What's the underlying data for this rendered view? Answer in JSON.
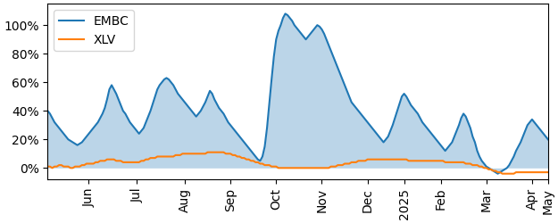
{
  "chart_data": {
    "type": "line",
    "categories": [
      null,
      null,
      null,
      null,
      null,
      null,
      null,
      null,
      null,
      null,
      null,
      null,
      null,
      null,
      null,
      null,
      null,
      null,
      "Jun",
      null,
      null,
      null,
      null,
      null,
      null,
      null,
      null,
      null,
      null,
      null,
      null,
      null,
      null,
      null,
      null,
      null,
      null,
      null,
      null,
      "Jul",
      null,
      null,
      null,
      null,
      null,
      null,
      null,
      null,
      null,
      null,
      null,
      null,
      null,
      null,
      null,
      null,
      null,
      null,
      null,
      null,
      "Aug",
      null,
      null,
      null,
      null,
      null,
      null,
      null,
      null,
      null,
      null,
      null,
      null,
      null,
      null,
      null,
      null,
      null,
      null,
      null,
      "Sep",
      null,
      null,
      null,
      null,
      null,
      null,
      null,
      null,
      null,
      null,
      null,
      null,
      null,
      null,
      null,
      null,
      null,
      null,
      null,
      "Oct",
      null,
      null,
      null,
      null,
      null,
      null,
      null,
      null,
      null,
      null,
      null,
      null,
      null,
      null,
      null,
      null,
      null,
      null,
      null,
      "Nov",
      null,
      null,
      null,
      null,
      null,
      null,
      null,
      null,
      null,
      null,
      null,
      null,
      null,
      null,
      null,
      null,
      null,
      null,
      null,
      "Dec",
      null,
      null,
      null,
      null,
      null,
      null,
      null,
      null,
      null,
      null,
      null,
      null,
      null,
      null,
      null,
      "2025",
      null,
      null,
      null,
      null,
      null,
      null,
      null,
      null,
      null,
      null,
      null,
      null,
      null,
      null,
      null,
      "Feb",
      null,
      null,
      null,
      null,
      null,
      null,
      null,
      null,
      null,
      null,
      null,
      null,
      null,
      null,
      null,
      null,
      null,
      null,
      null,
      "Mar",
      null,
      null,
      null,
      null,
      null,
      null,
      null,
      null,
      null,
      null,
      null,
      null,
      null,
      null,
      null,
      null,
      null,
      null,
      null,
      "Apr",
      null,
      null,
      null,
      null,
      null,
      null,
      "May"
    ],
    "series": [
      {
        "name": "EMBC",
        "type": "area",
        "values": [
          40,
          38,
          35,
          32,
          30,
          28,
          26,
          24,
          22,
          20,
          19,
          18,
          17,
          16,
          17,
          18,
          20,
          22,
          24,
          26,
          28,
          30,
          32,
          35,
          38,
          42,
          48,
          55,
          58,
          55,
          52,
          48,
          44,
          40,
          38,
          35,
          32,
          30,
          28,
          26,
          24,
          26,
          28,
          32,
          36,
          40,
          45,
          50,
          55,
          58,
          60,
          62,
          63,
          62,
          60,
          58,
          55,
          52,
          50,
          48,
          46,
          44,
          42,
          40,
          38,
          36,
          38,
          40,
          43,
          46,
          50,
          54,
          52,
          48,
          45,
          42,
          40,
          38,
          35,
          32,
          30,
          28,
          26,
          24,
          22,
          20,
          18,
          16,
          14,
          12,
          10,
          8,
          6,
          5,
          8,
          15,
          28,
          45,
          62,
          78,
          90,
          96,
          100,
          105,
          108,
          107,
          105,
          103,
          100,
          98,
          96,
          94,
          92,
          90,
          92,
          94,
          96,
          98,
          100,
          99,
          97,
          94,
          90,
          86,
          82,
          78,
          74,
          70,
          66,
          62,
          58,
          54,
          50,
          46,
          44,
          42,
          40,
          38,
          36,
          34,
          32,
          30,
          28,
          26,
          24,
          22,
          20,
          18,
          20,
          22,
          26,
          30,
          35,
          40,
          45,
          50,
          52,
          50,
          47,
          44,
          42,
          40,
          38,
          35,
          32,
          30,
          28,
          26,
          24,
          22,
          20,
          18,
          16,
          14,
          12,
          14,
          16,
          18,
          22,
          26,
          30,
          35,
          38,
          36,
          32,
          28,
          22,
          18,
          12,
          8,
          5,
          3,
          1,
          0,
          -1,
          -2,
          -3,
          -4,
          -3,
          -2,
          -1,
          0,
          2,
          5,
          8,
          12,
          15,
          18,
          22,
          26,
          30,
          32,
          34,
          32,
          30,
          28,
          26,
          24,
          22,
          20
        ]
      },
      {
        "name": "XLV",
        "type": "line",
        "values": [
          1,
          1,
          0,
          1,
          1,
          2,
          2,
          1,
          1,
          1,
          0,
          0,
          1,
          1,
          1,
          2,
          2,
          3,
          3,
          3,
          3,
          4,
          4,
          5,
          5,
          5,
          6,
          6,
          6,
          6,
          5,
          5,
          5,
          4,
          4,
          4,
          4,
          4,
          4,
          4,
          4,
          5,
          5,
          6,
          6,
          7,
          7,
          7,
          8,
          8,
          8,
          8,
          8,
          8,
          8,
          8,
          9,
          9,
          9,
          10,
          10,
          10,
          10,
          10,
          10,
          10,
          10,
          10,
          10,
          10,
          11,
          11,
          11,
          11,
          11,
          11,
          11,
          11,
          10,
          10,
          10,
          9,
          9,
          8,
          8,
          7,
          7,
          6,
          6,
          5,
          5,
          4,
          4,
          3,
          3,
          2,
          2,
          2,
          1,
          1,
          1,
          0,
          0,
          0,
          0,
          0,
          0,
          0,
          0,
          0,
          0,
          0,
          0,
          0,
          0,
          0,
          0,
          0,
          0,
          0,
          0,
          0,
          0,
          0,
          1,
          1,
          1,
          2,
          2,
          2,
          3,
          3,
          3,
          4,
          4,
          4,
          5,
          5,
          5,
          5,
          6,
          6,
          6,
          6,
          6,
          6,
          6,
          6,
          6,
          6,
          6,
          6,
          6,
          6,
          6,
          6,
          6,
          6,
          5,
          5,
          5,
          5,
          5,
          5,
          5,
          5,
          5,
          5,
          5,
          5,
          5,
          5,
          5,
          5,
          4,
          4,
          4,
          4,
          4,
          4,
          4,
          4,
          4,
          3,
          3,
          3,
          2,
          2,
          2,
          1,
          1,
          0,
          0,
          -1,
          -1,
          -2,
          -2,
          -3,
          -3,
          -4,
          -4,
          -4,
          -4,
          -4,
          -4,
          -3,
          -3,
          -3,
          -3,
          -3,
          -3,
          -3,
          -3,
          -3,
          -3,
          -3,
          -3,
          -3,
          -3,
          -3
        ]
      }
    ],
    "ylim": [
      -8,
      115
    ],
    "yticks": [
      {
        "value": 0,
        "label": "0%"
      },
      {
        "value": 20,
        "label": "20%"
      },
      {
        "value": 40,
        "label": "40%"
      },
      {
        "value": 60,
        "label": "60%"
      },
      {
        "value": 80,
        "label": "80%"
      },
      {
        "value": 100,
        "label": "100%"
      }
    ],
    "legend": "upper left"
  }
}
